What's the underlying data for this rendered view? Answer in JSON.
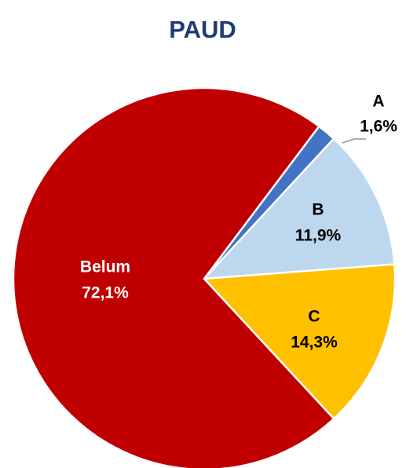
{
  "chart_data": {
    "type": "pie",
    "title": "PAUD",
    "categories": [
      "A",
      "B",
      "C",
      "Belum"
    ],
    "values": [
      1.6,
      11.9,
      14.3,
      72.1
    ],
    "value_labels": [
      "1,6%",
      "11,9%",
      "14,3%",
      "72,1%"
    ],
    "colors": [
      "#4472c4",
      "#bdd7ee",
      "#ffc000",
      "#c00000"
    ]
  }
}
